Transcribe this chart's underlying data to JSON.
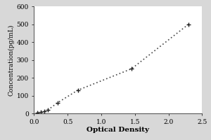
{
  "x_data": [
    0.05,
    0.1,
    0.15,
    0.2,
    0.35,
    0.65,
    1.45,
    2.3
  ],
  "y_data": [
    5,
    8,
    12,
    18,
    60,
    130,
    250,
    500
  ],
  "xlabel": "Optical Density",
  "ylabel": "Concentration(pg/mL)",
  "xlim": [
    0,
    2.5
  ],
  "ylim": [
    0,
    600
  ],
  "xticks": [
    0,
    0.5,
    1,
    1.5,
    2,
    2.5
  ],
  "yticks": [
    0,
    100,
    200,
    300,
    400,
    500,
    600
  ],
  "line_color": "#444444",
  "marker_color": "#222222",
  "marker_size": 5,
  "line_width": 1.2,
  "background_color": "#d8d8d8",
  "plot_bg_color": "#ffffff",
  "axis_label_fontsize": 7.5,
  "tick_fontsize": 6.5,
  "ylabel_fontsize": 6.5
}
